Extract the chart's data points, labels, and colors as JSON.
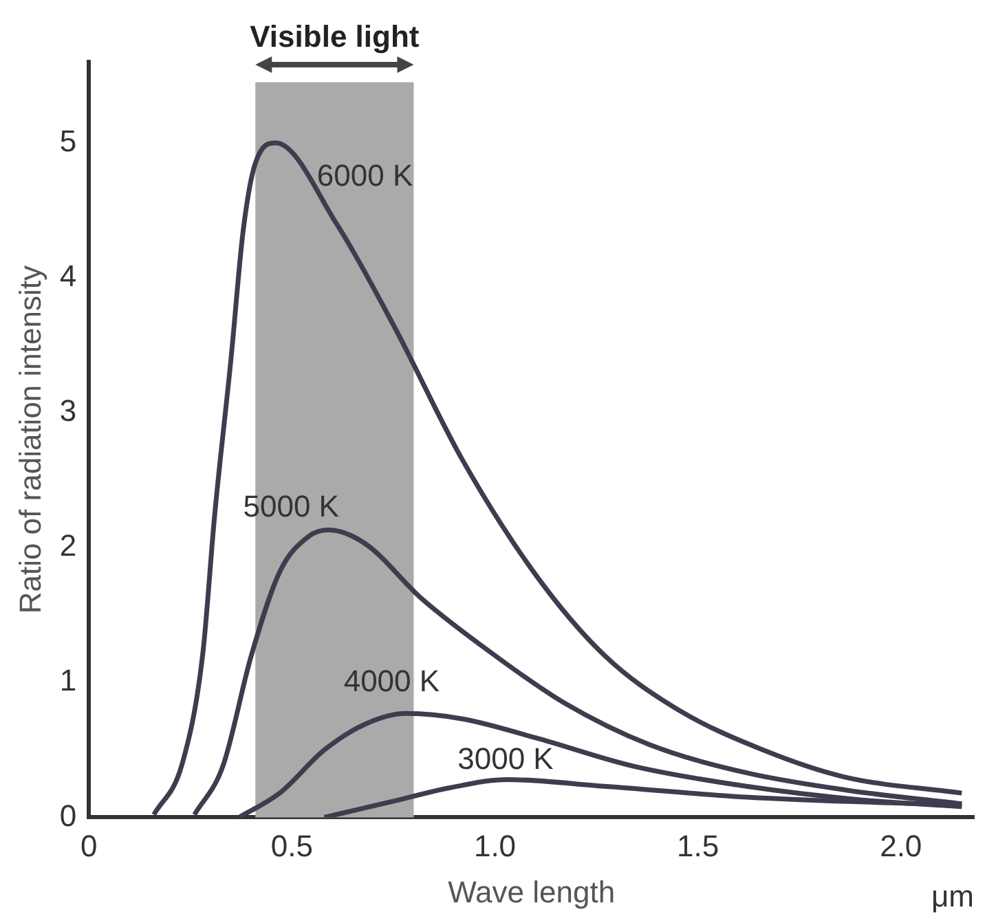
{
  "chart_data": {
    "type": "line",
    "xlabel": "Wave length",
    "ylabel": "Ratio of radiation intensity",
    "xlim": [
      0,
      2.18
    ],
    "xticks": [
      0,
      0.5,
      {
        "value": 1,
        "label": "1.0"
      },
      1.5,
      {
        "value": 2,
        "label": "2.0"
      }
    ],
    "ylim": [
      0,
      5.6
    ],
    "yticks": [
      0,
      1,
      2,
      3,
      4,
      5
    ],
    "grid": false,
    "legend": false,
    "marker": "none",
    "line_style": "solid",
    "bands": [
      {
        "axis": "x",
        "from": 0.41,
        "to": 0.8,
        "label": "Visible light",
        "color": "#aaaaaa"
      }
    ],
    "annotations": [
      "μm"
    ],
    "series": [
      {
        "name": "6000 K",
        "color": "#3d3d4f",
        "x": [
          0.16,
          0.23,
          0.28,
          0.31,
          0.35,
          0.38,
          0.41,
          0.46,
          0.61,
          0.75,
          0.92,
          1.1,
          1.27,
          1.45,
          1.66,
          1.86,
          2.15
        ],
        "values": [
          0.02,
          0.4,
          1.2,
          2.25,
          3.4,
          4.35,
          4.85,
          5.0,
          4.4,
          3.65,
          2.65,
          1.8,
          1.2,
          0.8,
          0.5,
          0.3,
          0.18
        ]
      },
      {
        "name": "5000 K",
        "color": "#3d3d4f",
        "x": [
          0.26,
          0.33,
          0.4,
          0.47,
          0.54,
          0.59,
          0.68,
          0.82,
          1.0,
          1.17,
          1.38,
          1.62,
          1.87,
          2.15
        ],
        "values": [
          0.02,
          0.38,
          1.2,
          1.82,
          2.08,
          2.13,
          2.03,
          1.62,
          1.2,
          0.85,
          0.54,
          0.33,
          0.2,
          0.1
        ]
      },
      {
        "name": "4000 K",
        "color": "#3d3d4f",
        "x": [
          0.37,
          0.47,
          0.58,
          0.68,
          0.78,
          0.92,
          1.1,
          1.34,
          1.62,
          1.9,
          2.15
        ],
        "values": [
          0,
          0.18,
          0.5,
          0.69,
          0.77,
          0.73,
          0.59,
          0.38,
          0.23,
          0.13,
          0.08
        ]
      },
      {
        "name": "3000 K",
        "color": "#3d3d4f",
        "x": [
          0.58,
          0.75,
          0.89,
          1.03,
          1.27,
          1.62,
          2.15
        ],
        "values": [
          0,
          0.12,
          0.22,
          0.28,
          0.23,
          0.15,
          0.09
        ]
      }
    ]
  }
}
